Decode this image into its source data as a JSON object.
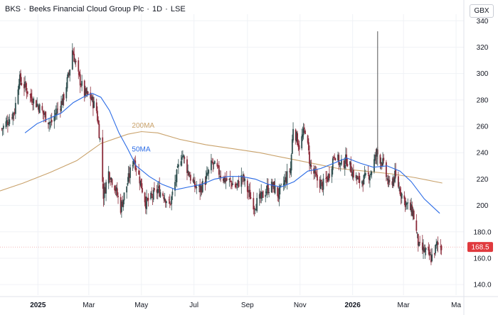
{
  "header": {
    "ticker": "BKS",
    "company": "Beeks Financial Cloud Group Plc",
    "interval": "1D",
    "exchange": "LSE",
    "currency": "GBX"
  },
  "chart_data": {
    "type": "candlestick",
    "title": "BKS · Beeks Financial Cloud Group Plc · 1D · LSE",
    "ylabel": "",
    "currency": "GBX",
    "ylim": [
      132,
      345
    ],
    "y_ticks": [
      "340",
      "320",
      "300",
      "280",
      "260",
      "240",
      "220",
      "200",
      "180.0",
      "160.0",
      "140.0"
    ],
    "y_tick_values": [
      340,
      320,
      300,
      280,
      260,
      240,
      220,
      200,
      180,
      160,
      140
    ],
    "x_ticks": [
      {
        "label": "2025",
        "date": "2025-01-01",
        "bold": true
      },
      {
        "label": "Mar",
        "date": "2025-03-01",
        "bold": false
      },
      {
        "label": "May",
        "date": "2025-05-01",
        "bold": false
      },
      {
        "label": "Jul",
        "date": "2025-07-01",
        "bold": false
      },
      {
        "label": "Sep",
        "date": "2025-09-01",
        "bold": false
      },
      {
        "label": "Nov",
        "date": "2025-11-01",
        "bold": false
      },
      {
        "label": "2026",
        "date": "2026-01-01",
        "bold": true
      },
      {
        "label": "Mar",
        "date": "2026-03-01",
        "bold": false
      },
      {
        "label": "Ma",
        "date": "2026-05-01",
        "bold": false
      }
    ],
    "xlim": [
      "2024-11-18",
      "2026-05-10"
    ],
    "last_price": "168.5",
    "colors": {
      "up": "#2f4f4f",
      "down": "#8b2b3a",
      "ma50": "#2a6be6",
      "ma200": "#c9a26b",
      "last_badge": "#e03a3e"
    },
    "price_path": [
      [
        "2024-11-20",
        258
      ],
      [
        "2024-11-27",
        264
      ],
      [
        "2024-12-05",
        272
      ],
      [
        "2024-12-10",
        296
      ],
      [
        "2024-12-17",
        290
      ],
      [
        "2024-12-24",
        282
      ],
      [
        "2025-01-02",
        275
      ],
      [
        "2025-01-09",
        268
      ],
      [
        "2025-01-16",
        262
      ],
      [
        "2025-01-23",
        272
      ],
      [
        "2025-01-30",
        280
      ],
      [
        "2025-02-06",
        300
      ],
      [
        "2025-02-10",
        318
      ],
      [
        "2025-02-17",
        298
      ],
      [
        "2025-02-24",
        285
      ],
      [
        "2025-03-03",
        282
      ],
      [
        "2025-03-10",
        272
      ],
      [
        "2025-03-14",
        250
      ],
      [
        "2025-03-18",
        208
      ],
      [
        "2025-03-24",
        225
      ],
      [
        "2025-03-31",
        215
      ],
      [
        "2025-04-07",
        198
      ],
      [
        "2025-04-14",
        215
      ],
      [
        "2025-04-22",
        236
      ],
      [
        "2025-04-29",
        220
      ],
      [
        "2025-05-06",
        202
      ],
      [
        "2025-05-13",
        206
      ],
      [
        "2025-05-20",
        212
      ],
      [
        "2025-05-27",
        208
      ],
      [
        "2025-06-03",
        200
      ],
      [
        "2025-06-10",
        220
      ],
      [
        "2025-06-17",
        240
      ],
      [
        "2025-06-24",
        226
      ],
      [
        "2025-07-01",
        215
      ],
      [
        "2025-07-08",
        212
      ],
      [
        "2025-07-15",
        220
      ],
      [
        "2025-07-22",
        232
      ],
      [
        "2025-07-29",
        226
      ],
      [
        "2025-08-05",
        220
      ],
      [
        "2025-08-12",
        218
      ],
      [
        "2025-08-19",
        214
      ],
      [
        "2025-08-26",
        222
      ],
      [
        "2025-09-02",
        210
      ],
      [
        "2025-09-09",
        200
      ],
      [
        "2025-09-16",
        205
      ],
      [
        "2025-09-23",
        212
      ],
      [
        "2025-09-30",
        215
      ],
      [
        "2025-10-07",
        208
      ],
      [
        "2025-10-14",
        218
      ],
      [
        "2025-10-21",
        228
      ],
      [
        "2025-10-24",
        260
      ],
      [
        "2025-10-31",
        245
      ],
      [
        "2025-11-07",
        258
      ],
      [
        "2025-11-13",
        230
      ],
      [
        "2025-11-20",
        220
      ],
      [
        "2025-11-27",
        215
      ],
      [
        "2025-12-04",
        222
      ],
      [
        "2025-12-11",
        240
      ],
      [
        "2025-12-18",
        230
      ],
      [
        "2025-12-25",
        235
      ],
      [
        "2026-01-01",
        225
      ],
      [
        "2026-01-08",
        218
      ],
      [
        "2026-01-15",
        220
      ],
      [
        "2026-01-22",
        225
      ],
      [
        "2026-01-29",
        240
      ],
      [
        "2026-02-05",
        232
      ],
      [
        "2026-02-12",
        215
      ],
      [
        "2026-02-19",
        222
      ],
      [
        "2026-02-26",
        210
      ],
      [
        "2026-03-05",
        200
      ],
      [
        "2026-03-12",
        195
      ],
      [
        "2026-03-19",
        168
      ],
      [
        "2026-03-26",
        165
      ],
      [
        "2026-04-02",
        160
      ],
      [
        "2026-04-09",
        170
      ],
      [
        "2026-04-14",
        168.5
      ]
    ],
    "ma50_path": [
      [
        "2024-12-17",
        255
      ],
      [
        "2024-12-31",
        262
      ],
      [
        "2025-01-14",
        266
      ],
      [
        "2025-01-28",
        270
      ],
      [
        "2025-02-11",
        278
      ],
      [
        "2025-02-25",
        283
      ],
      [
        "2025-03-05",
        285
      ],
      [
        "2025-03-15",
        282
      ],
      [
        "2025-03-25",
        272
      ],
      [
        "2025-04-05",
        255
      ],
      [
        "2025-04-15",
        243
      ],
      [
        "2025-04-25",
        230
      ],
      [
        "2025-05-10",
        222
      ],
      [
        "2025-05-25",
        216
      ],
      [
        "2025-06-10",
        212
      ],
      [
        "2025-06-25",
        214
      ],
      [
        "2025-07-10",
        216
      ],
      [
        "2025-07-25",
        220
      ],
      [
        "2025-08-10",
        222
      ],
      [
        "2025-08-25",
        222
      ],
      [
        "2025-09-10",
        220
      ],
      [
        "2025-09-25",
        216
      ],
      [
        "2025-10-10",
        214
      ],
      [
        "2025-10-25",
        218
      ],
      [
        "2025-11-10",
        226
      ],
      [
        "2025-11-25",
        228
      ],
      [
        "2025-12-10",
        232
      ],
      [
        "2025-12-25",
        236
      ],
      [
        "2026-01-10",
        232
      ],
      [
        "2026-01-25",
        229
      ],
      [
        "2026-02-10",
        230
      ],
      [
        "2026-02-25",
        226
      ],
      [
        "2026-03-10",
        218
      ],
      [
        "2026-03-25",
        205
      ],
      [
        "2026-04-12",
        194
      ]
    ],
    "ma200_path": [
      [
        "2024-11-18",
        211
      ],
      [
        "2024-12-15",
        217
      ],
      [
        "2025-01-15",
        225
      ],
      [
        "2025-02-15",
        234
      ],
      [
        "2025-03-15",
        247
      ],
      [
        "2025-04-15",
        254
      ],
      [
        "2025-05-01",
        256
      ],
      [
        "2025-05-20",
        255
      ],
      [
        "2025-06-15",
        250
      ],
      [
        "2025-07-15",
        246
      ],
      [
        "2025-08-15",
        243
      ],
      [
        "2025-09-15",
        240
      ],
      [
        "2025-10-15",
        236
      ],
      [
        "2025-11-15",
        232
      ],
      [
        "2025-12-15",
        228
      ],
      [
        "2026-01-15",
        226
      ],
      [
        "2026-02-15",
        224
      ],
      [
        "2026-03-15",
        221
      ],
      [
        "2026-04-15",
        217
      ]
    ],
    "spike": {
      "date": "2026-01-30",
      "low": 230,
      "high": 332
    },
    "annotations": [
      {
        "text": "200MA",
        "date": "2025-04-20",
        "value": 259,
        "color": "#c9a26b"
      },
      {
        "text": "50MA",
        "date": "2025-04-20",
        "value": 241,
        "color": "#2a6be6"
      }
    ]
  }
}
